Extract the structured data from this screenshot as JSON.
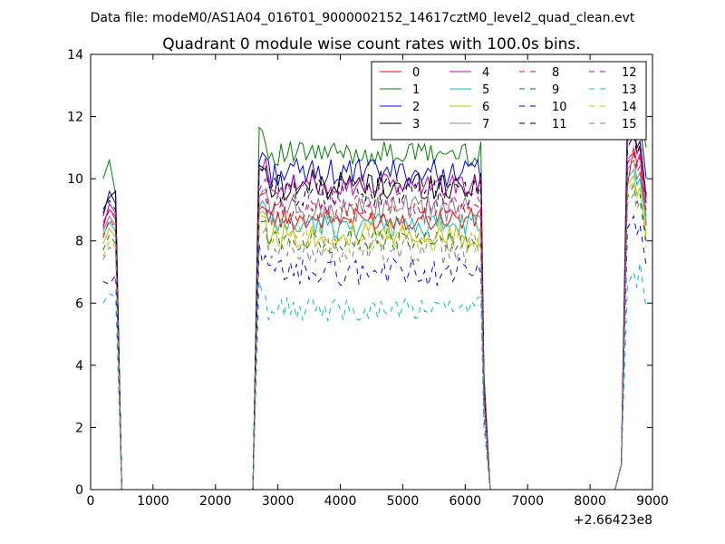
{
  "figure": {
    "suptitle": "Data file: modeM0/AS1A04_016T01_9000002152_14617cztM0_level2_quad_clean.evt"
  },
  "chart_data": {
    "type": "line",
    "title": "Quadrant 0 module wise count rates with 100.0s bins.",
    "xlabel": "",
    "ylabel": "",
    "x_offset_label": "+2.66423e8",
    "xlim": [
      0,
      9000
    ],
    "ylim": [
      0,
      14
    ],
    "xticks": [
      0,
      1000,
      2000,
      3000,
      4000,
      5000,
      6000,
      7000,
      8000,
      9000
    ],
    "yticks": [
      0,
      2,
      4,
      6,
      8,
      10,
      12,
      14
    ],
    "grid": false,
    "legend_position": "top-right",
    "segments": [
      {
        "start": 200,
        "end": 500
      },
      {
        "start": 2600,
        "end": 6400
      },
      {
        "start": 8400,
        "end": 8900
      }
    ],
    "series": [
      {
        "name": "0",
        "color": "#ff0000",
        "dash": "solid",
        "level": 8.7,
        "seg1": [
          8.6,
          9.0,
          8.8
        ],
        "seg3": [
          9.8,
          11.0,
          10.5,
          10.8,
          8.5
        ]
      },
      {
        "name": "1",
        "color": "#008000",
        "dash": "solid",
        "level": 10.8,
        "seg1": [
          10.0,
          10.6,
          9.5
        ],
        "seg3": [
          12.4,
          13.0,
          12.5,
          12.2,
          11.0
        ]
      },
      {
        "name": "2",
        "color": "#0000ff",
        "dash": "solid",
        "level": 10.2,
        "seg1": [
          8.8,
          9.6,
          9.2
        ],
        "seg3": [
          11.9,
          12.1,
          11.6,
          11.8,
          10.0
        ]
      },
      {
        "name": "3",
        "color": "#000000",
        "dash": "solid",
        "level": 9.8,
        "seg1": [
          9.0,
          9.4,
          9.6
        ],
        "seg3": [
          11.4,
          11.8,
          11.0,
          11.2,
          9.4
        ]
      },
      {
        "name": "4",
        "color": "#bf00bf",
        "dash": "solid",
        "level": 9.8,
        "seg1": [
          8.4,
          9.2,
          8.9
        ],
        "seg3": [
          11.2,
          11.6,
          10.8,
          11.0,
          9.2
        ]
      },
      {
        "name": "5",
        "color": "#00bfbf",
        "dash": "solid",
        "level": 8.5,
        "seg1": [
          8.2,
          8.6,
          8.3
        ],
        "seg3": [
          10.0,
          10.3,
          9.8,
          10.0,
          8.6
        ]
      },
      {
        "name": "6",
        "color": "#bfbf00",
        "dash": "solid",
        "level": 8.2,
        "seg1": [
          7.9,
          8.4,
          8.1
        ],
        "seg3": [
          9.8,
          10.1,
          9.5,
          9.7,
          8.2
        ]
      },
      {
        "name": "7",
        "color": "#808080",
        "dash": "solid",
        "level": 9.0,
        "seg1": [
          8.3,
          8.8,
          8.5
        ],
        "seg3": [
          10.3,
          10.6,
          10.0,
          10.2,
          8.8
        ]
      },
      {
        "name": "8",
        "color": "#ff0000",
        "dash": "dashed",
        "level": 8.9,
        "seg1": [
          8.1,
          8.7,
          8.4
        ],
        "seg3": [
          10.5,
          10.8,
          10.2,
          10.4,
          8.9
        ]
      },
      {
        "name": "9",
        "color": "#008000",
        "dash": "dashed",
        "level": 8.0,
        "seg1": [
          7.7,
          8.2,
          7.9
        ],
        "seg3": [
          9.4,
          9.8,
          9.2,
          9.5,
          8.0
        ]
      },
      {
        "name": "10",
        "color": "#0000ff",
        "dash": "dashed",
        "level": 7.0,
        "seg1": [
          6.7,
          6.6,
          6.9
        ],
        "seg3": [
          8.4,
          8.8,
          8.2,
          8.5,
          7.2
        ]
      },
      {
        "name": "11",
        "color": "#000000",
        "dash": "dashed",
        "level": 9.6,
        "seg1": [
          8.9,
          9.3,
          9.0
        ],
        "seg3": [
          11.0,
          11.4,
          10.8,
          11.1,
          9.5
        ]
      },
      {
        "name": "12",
        "color": "#bf00bf",
        "dash": "dashed",
        "level": 9.2,
        "seg1": [
          8.5,
          9.0,
          8.7
        ],
        "seg3": [
          10.6,
          10.9,
          10.4,
          10.7,
          9.0
        ]
      },
      {
        "name": "13",
        "color": "#00bfbf",
        "dash": "dashed",
        "level": 5.8,
        "seg1": [
          6.0,
          6.3,
          6.2
        ],
        "seg3": [
          6.6,
          7.0,
          6.5,
          7.3,
          5.8
        ]
      },
      {
        "name": "14",
        "color": "#bfbf00",
        "dash": "dashed",
        "level": 8.0,
        "seg1": [
          7.5,
          8.0,
          7.8
        ],
        "seg3": [
          9.6,
          9.9,
          9.4,
          9.7,
          8.0
        ]
      },
      {
        "name": "15",
        "color": "#808080",
        "dash": "dashed",
        "level": 7.7,
        "seg1": [
          7.4,
          7.8,
          7.6
        ],
        "seg3": [
          9.2,
          9.5,
          9.0,
          9.3,
          7.8
        ]
      }
    ]
  }
}
